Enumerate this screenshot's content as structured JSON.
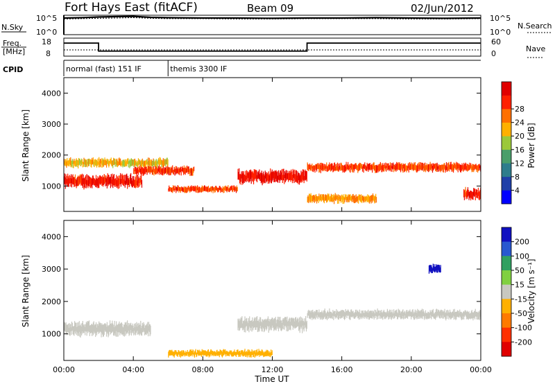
{
  "header": {
    "title": "Fort Hays East (fitACF)",
    "beam": "Beam 09",
    "date": "02/Jun/2012"
  },
  "nsky_panel": {
    "left_label": "N.Sky",
    "right_label": "N.Search",
    "left_ticks": [
      "10^5",
      "10^0"
    ],
    "right_ticks": [
      "10^5",
      "10^0"
    ]
  },
  "freq_panel": {
    "left_label_1": "Freq.",
    "left_label_2": "[MHz]",
    "right_label": "Nave",
    "left_ticks": [
      "18",
      "8"
    ],
    "right_ticks": [
      "60",
      "0"
    ]
  },
  "cpid_panel": {
    "label": "CPID",
    "segments": [
      {
        "text": "normal (fast) 151 IF",
        "start_hour": 0,
        "end_hour": 6
      },
      {
        "text": "themis 3300 IF",
        "start_hour": 6,
        "end_hour": 24
      }
    ]
  },
  "time_axis": {
    "label": "Time UT",
    "ticks": [
      "00:00",
      "04:00",
      "08:00",
      "12:00",
      "16:00",
      "20:00",
      "00:00"
    ]
  },
  "power_panel": {
    "ylabel": "Slant Range [km]",
    "yticks": [
      "1000",
      "2000",
      "3000",
      "4000"
    ],
    "colorbar_label": "Power [dB]",
    "colorbar_ticks": [
      "4",
      "8",
      "12",
      "16",
      "20",
      "24",
      "28"
    ],
    "colors": [
      "#0000ff",
      "#1f3fa8",
      "#2e7d8c",
      "#4a9e6a",
      "#9bc83a",
      "#ffb000",
      "#ff7000",
      "#ff2000",
      "#e00000"
    ]
  },
  "velocity_panel": {
    "ylabel": "Slant Range [km]",
    "yticks": [
      "1000",
      "2000",
      "3000",
      "4000"
    ],
    "colorbar_label": "Velocity [m s⁻¹]",
    "colorbar_ticks": [
      "200",
      "100",
      "50",
      "15",
      "-15",
      "-50",
      "-100",
      "-200"
    ],
    "colors": [
      "#1010c0",
      "#2858d0",
      "#30a060",
      "#80d040",
      "#c8c8c0",
      "#ffb000",
      "#ff7a00",
      "#ff3000",
      "#e00000"
    ]
  },
  "chart_data": [
    {
      "type": "line",
      "title": "N.Sky / N.Search",
      "x_hours": [
        0,
        1,
        2,
        3,
        4,
        5,
        6,
        8,
        10,
        12,
        14,
        16,
        18,
        20,
        22,
        24
      ],
      "series": [
        {
          "name": "N.Sky",
          "values_log10": [
            4.8,
            4.9,
            5.1,
            5.2,
            5.3,
            5.0,
            4.9,
            4.8,
            4.8,
            4.7,
            4.8,
            4.8,
            4.9,
            4.8,
            4.7,
            4.8
          ]
        },
        {
          "name": "N.Search",
          "values_log10": [
            4.5,
            4.6,
            4.7,
            4.8,
            4.9,
            4.7,
            4.6,
            4.6,
            4.5,
            4.5,
            4.6,
            4.6,
            4.6,
            4.5,
            4.5,
            4.6
          ]
        }
      ],
      "ylim_log10": [
        0,
        5
      ]
    },
    {
      "type": "line",
      "title": "Freq. / Nave",
      "series": [
        {
          "name": "Freq.",
          "unit": "MHz",
          "steps": [
            {
              "start_hour": 0,
              "end_hour": 2,
              "value": 16
            },
            {
              "start_hour": 2,
              "end_hour": 14,
              "value": 10.5
            },
            {
              "start_hour": 14,
              "end_hour": 24,
              "value": 16
            }
          ]
        },
        {
          "name": "Nave",
          "steps": [
            {
              "start_hour": 0,
              "end_hour": 24,
              "value": 20
            }
          ]
        }
      ],
      "ylim_freq": [
        8,
        18
      ],
      "ylim_nave": [
        0,
        60
      ]
    },
    {
      "type": "heatmap",
      "title": "Power",
      "xlabel": "Time UT",
      "ylabel": "Slant Range [km]",
      "xlim_hours": [
        0,
        24
      ],
      "ylim_km": [
        180,
        4500
      ],
      "colorbar": "Power [dB]",
      "clim": [
        0,
        30
      ],
      "echo_bands": [
        {
          "start_hour": 0,
          "end_hour": 4.5,
          "range_km_center": 1150,
          "width_km": 300,
          "power_db": 26
        },
        {
          "start_hour": 0,
          "end_hour": 6,
          "range_km_center": 1750,
          "width_km": 200,
          "power_db": 18
        },
        {
          "start_hour": 4,
          "end_hour": 7.5,
          "range_km_center": 1500,
          "width_km": 200,
          "power_db": 25
        },
        {
          "start_hour": 6,
          "end_hour": 10,
          "range_km_center": 900,
          "width_km": 150,
          "power_db": 24
        },
        {
          "start_hour": 10,
          "end_hour": 14,
          "range_km_center": 1300,
          "width_km": 300,
          "power_db": 27
        },
        {
          "start_hour": 14,
          "end_hour": 24,
          "range_km_center": 1600,
          "width_km": 200,
          "power_db": 24
        },
        {
          "start_hour": 14,
          "end_hour": 18,
          "range_km_center": 600,
          "width_km": 200,
          "power_db": 20
        },
        {
          "start_hour": 23,
          "end_hour": 24,
          "range_km_center": 750,
          "width_km": 250,
          "power_db": 25
        }
      ]
    },
    {
      "type": "heatmap",
      "title": "Velocity",
      "xlabel": "Time UT",
      "ylabel": "Slant Range [km]",
      "xlim_hours": [
        0,
        24
      ],
      "ylim_km": [
        180,
        4500
      ],
      "colorbar": "Velocity [m s⁻¹]",
      "clim": [
        -250,
        250
      ],
      "echo_bands": [
        {
          "start_hour": 0,
          "end_hour": 5,
          "range_km_center": 1150,
          "width_km": 300,
          "velocity": 0
        },
        {
          "start_hour": 6,
          "end_hour": 12,
          "range_km_center": 400,
          "width_km": 150,
          "velocity": -50
        },
        {
          "start_hour": 10,
          "end_hour": 14,
          "range_km_center": 1300,
          "width_km": 300,
          "velocity": 0
        },
        {
          "start_hour": 14,
          "end_hour": 24,
          "range_km_center": 1600,
          "width_km": 200,
          "velocity": 0
        },
        {
          "start_hour": 21,
          "end_hour": 21.7,
          "range_km_center": 3000,
          "width_km": 200,
          "velocity": 200
        }
      ]
    }
  ]
}
